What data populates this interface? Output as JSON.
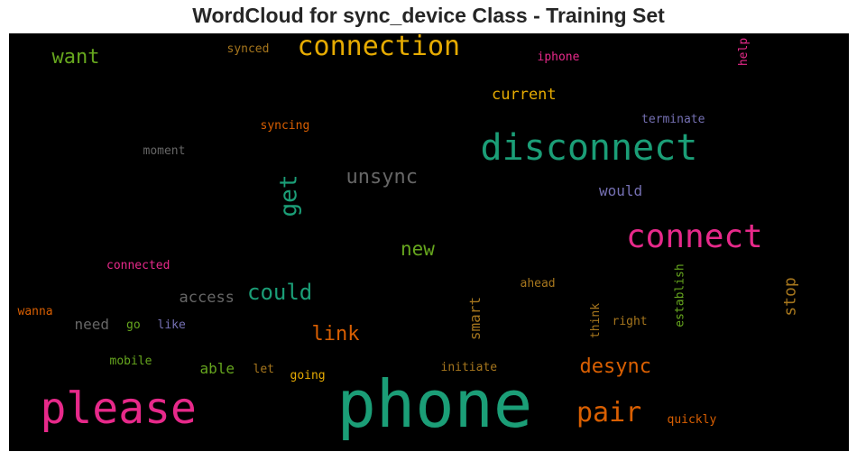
{
  "title": "WordCloud for sync_device Class - Training Set",
  "background_color": "#000000",
  "words": [
    {
      "id": "phone",
      "text": "phone",
      "color": "#1b9e77",
      "vertical": false
    },
    {
      "id": "please",
      "text": "please",
      "color": "#e7298a",
      "vertical": false
    },
    {
      "id": "disconnect",
      "text": "disconnect",
      "color": "#1b9e77",
      "vertical": false
    },
    {
      "id": "connect",
      "text": "connect",
      "color": "#e7298a",
      "vertical": false
    },
    {
      "id": "connection",
      "text": "connection",
      "color": "#e6ab02",
      "vertical": false
    },
    {
      "id": "pair",
      "text": "pair",
      "color": "#d95f02",
      "vertical": false
    },
    {
      "id": "desync",
      "text": "desync",
      "color": "#d95f02",
      "vertical": false
    },
    {
      "id": "want",
      "text": "want",
      "color": "#66a61e",
      "vertical": false
    },
    {
      "id": "unsync",
      "text": "unsync",
      "color": "#666666",
      "vertical": false
    },
    {
      "id": "get",
      "text": "get",
      "color": "#1b9e77",
      "vertical": true
    },
    {
      "id": "could",
      "text": "could",
      "color": "#1b9e77",
      "vertical": false
    },
    {
      "id": "link",
      "text": "link",
      "color": "#d95f02",
      "vertical": false
    },
    {
      "id": "new",
      "text": "new",
      "color": "#66a61e",
      "vertical": false
    },
    {
      "id": "current",
      "text": "current",
      "color": "#e6ab02",
      "vertical": false
    },
    {
      "id": "access",
      "text": "access",
      "color": "#666666",
      "vertical": false
    },
    {
      "id": "would",
      "text": "would",
      "color": "#7570b3",
      "vertical": false
    },
    {
      "id": "stop",
      "text": "stop",
      "color": "#a6761d",
      "vertical": true
    },
    {
      "id": "smart",
      "text": "smart",
      "color": "#a6761d",
      "vertical": true
    },
    {
      "id": "able",
      "text": "able",
      "color": "#66a61e",
      "vertical": false
    },
    {
      "id": "need",
      "text": "need",
      "color": "#666666",
      "vertical": false
    },
    {
      "id": "synced",
      "text": "synced",
      "color": "#a6761d",
      "vertical": false
    },
    {
      "id": "iphone",
      "text": "iphone",
      "color": "#e7298a",
      "vertical": false
    },
    {
      "id": "help",
      "text": "help",
      "color": "#e7298a",
      "vertical": true
    },
    {
      "id": "terminate",
      "text": "terminate",
      "color": "#7570b3",
      "vertical": false
    },
    {
      "id": "syncing",
      "text": "syncing",
      "color": "#d95f02",
      "vertical": false
    },
    {
      "id": "moment",
      "text": "moment",
      "color": "#666666",
      "vertical": false
    },
    {
      "id": "connected",
      "text": "connected",
      "color": "#e7298a",
      "vertical": false
    },
    {
      "id": "wanna",
      "text": "wanna",
      "color": "#d95f02",
      "vertical": false
    },
    {
      "id": "go",
      "text": "go",
      "color": "#66a61e",
      "vertical": false
    },
    {
      "id": "like",
      "text": "like",
      "color": "#7570b3",
      "vertical": false
    },
    {
      "id": "mobile",
      "text": "mobile",
      "color": "#66a61e",
      "vertical": false
    },
    {
      "id": "let",
      "text": "let",
      "color": "#a6761d",
      "vertical": false
    },
    {
      "id": "going",
      "text": "going",
      "color": "#e6ab02",
      "vertical": false
    },
    {
      "id": "ahead",
      "text": "ahead",
      "color": "#a6761d",
      "vertical": false
    },
    {
      "id": "initiate",
      "text": "initiate",
      "color": "#a6761d",
      "vertical": false
    },
    {
      "id": "think",
      "text": "think",
      "color": "#a6761d",
      "vertical": true
    },
    {
      "id": "right",
      "text": "right",
      "color": "#a6761d",
      "vertical": false
    },
    {
      "id": "establish",
      "text": "establish",
      "color": "#66a61e",
      "vertical": true
    },
    {
      "id": "quickly",
      "text": "quickly",
      "color": "#d95f02",
      "vertical": false
    }
  ]
}
